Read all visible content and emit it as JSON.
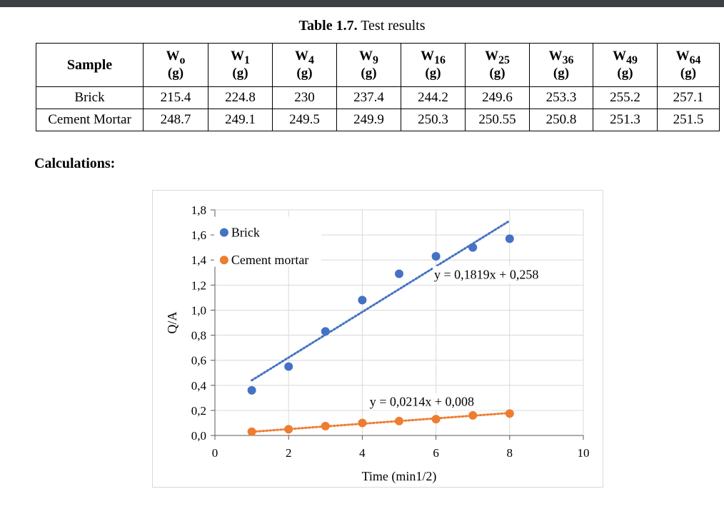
{
  "caption": {
    "number": "Table 1.7.",
    "text": "Test results"
  },
  "table": {
    "header_sample": "Sample",
    "unit": "(g)",
    "columns": [
      {
        "w": "W",
        "sub": "o"
      },
      {
        "w": "W",
        "sub": "1"
      },
      {
        "w": "W",
        "sub": "4"
      },
      {
        "w": "W",
        "sub": "9"
      },
      {
        "w": "W",
        "sub": "16"
      },
      {
        "w": "W",
        "sub": "25"
      },
      {
        "w": "W",
        "sub": "36"
      },
      {
        "w": "W",
        "sub": "49"
      },
      {
        "w": "W",
        "sub": "64"
      }
    ],
    "rows": [
      {
        "sample": "Brick",
        "values": [
          "215.4",
          "224.8",
          "230",
          "237.4",
          "244.2",
          "249.6",
          "253.3",
          "255.2",
          "257.1"
        ]
      },
      {
        "sample": "Cement Mortar",
        "values": [
          "248.7",
          "249.1",
          "249.5",
          "249.9",
          "250.3",
          "250.55",
          "250.8",
          "251.3",
          "251.5"
        ]
      }
    ]
  },
  "calculations_heading": "Calculations:",
  "chart_data": {
    "type": "scatter",
    "xlabel": "Time (min1/2)",
    "ylabel": "Q/A",
    "xlim": [
      0,
      10
    ],
    "ylim": [
      0,
      1.8
    ],
    "xticks": [
      "0",
      "2",
      "4",
      "6",
      "8",
      "10"
    ],
    "yticks": [
      "0,0",
      "0,2",
      "0,4",
      "0,6",
      "0,8",
      "1,0",
      "1,2",
      "1,4",
      "1,6",
      "1,8"
    ],
    "grid": true,
    "legend_position": "top-left",
    "series": [
      {
        "name": "Brick",
        "color": "#4472c4",
        "x": [
          1,
          2,
          3,
          4,
          5,
          6,
          7,
          8
        ],
        "y": [
          0.36,
          0.55,
          0.83,
          1.08,
          1.29,
          1.43,
          1.5,
          1.57
        ],
        "trendline": {
          "slope": 0.1819,
          "intercept": 0.258,
          "x_range": [
            1,
            8
          ],
          "equation": "y = 0,1819x + 0,258"
        }
      },
      {
        "name": "Cement mortar",
        "color": "#ed7d31",
        "x": [
          1,
          2,
          3,
          4,
          5,
          6,
          7,
          8
        ],
        "y": [
          0.03,
          0.05,
          0.075,
          0.1,
          0.115,
          0.13,
          0.16,
          0.175
        ],
        "trendline": {
          "slope": 0.0214,
          "intercept": 0.008,
          "x_range": [
            1,
            8
          ],
          "equation": "y = 0,0214x + 0,008"
        }
      }
    ]
  }
}
